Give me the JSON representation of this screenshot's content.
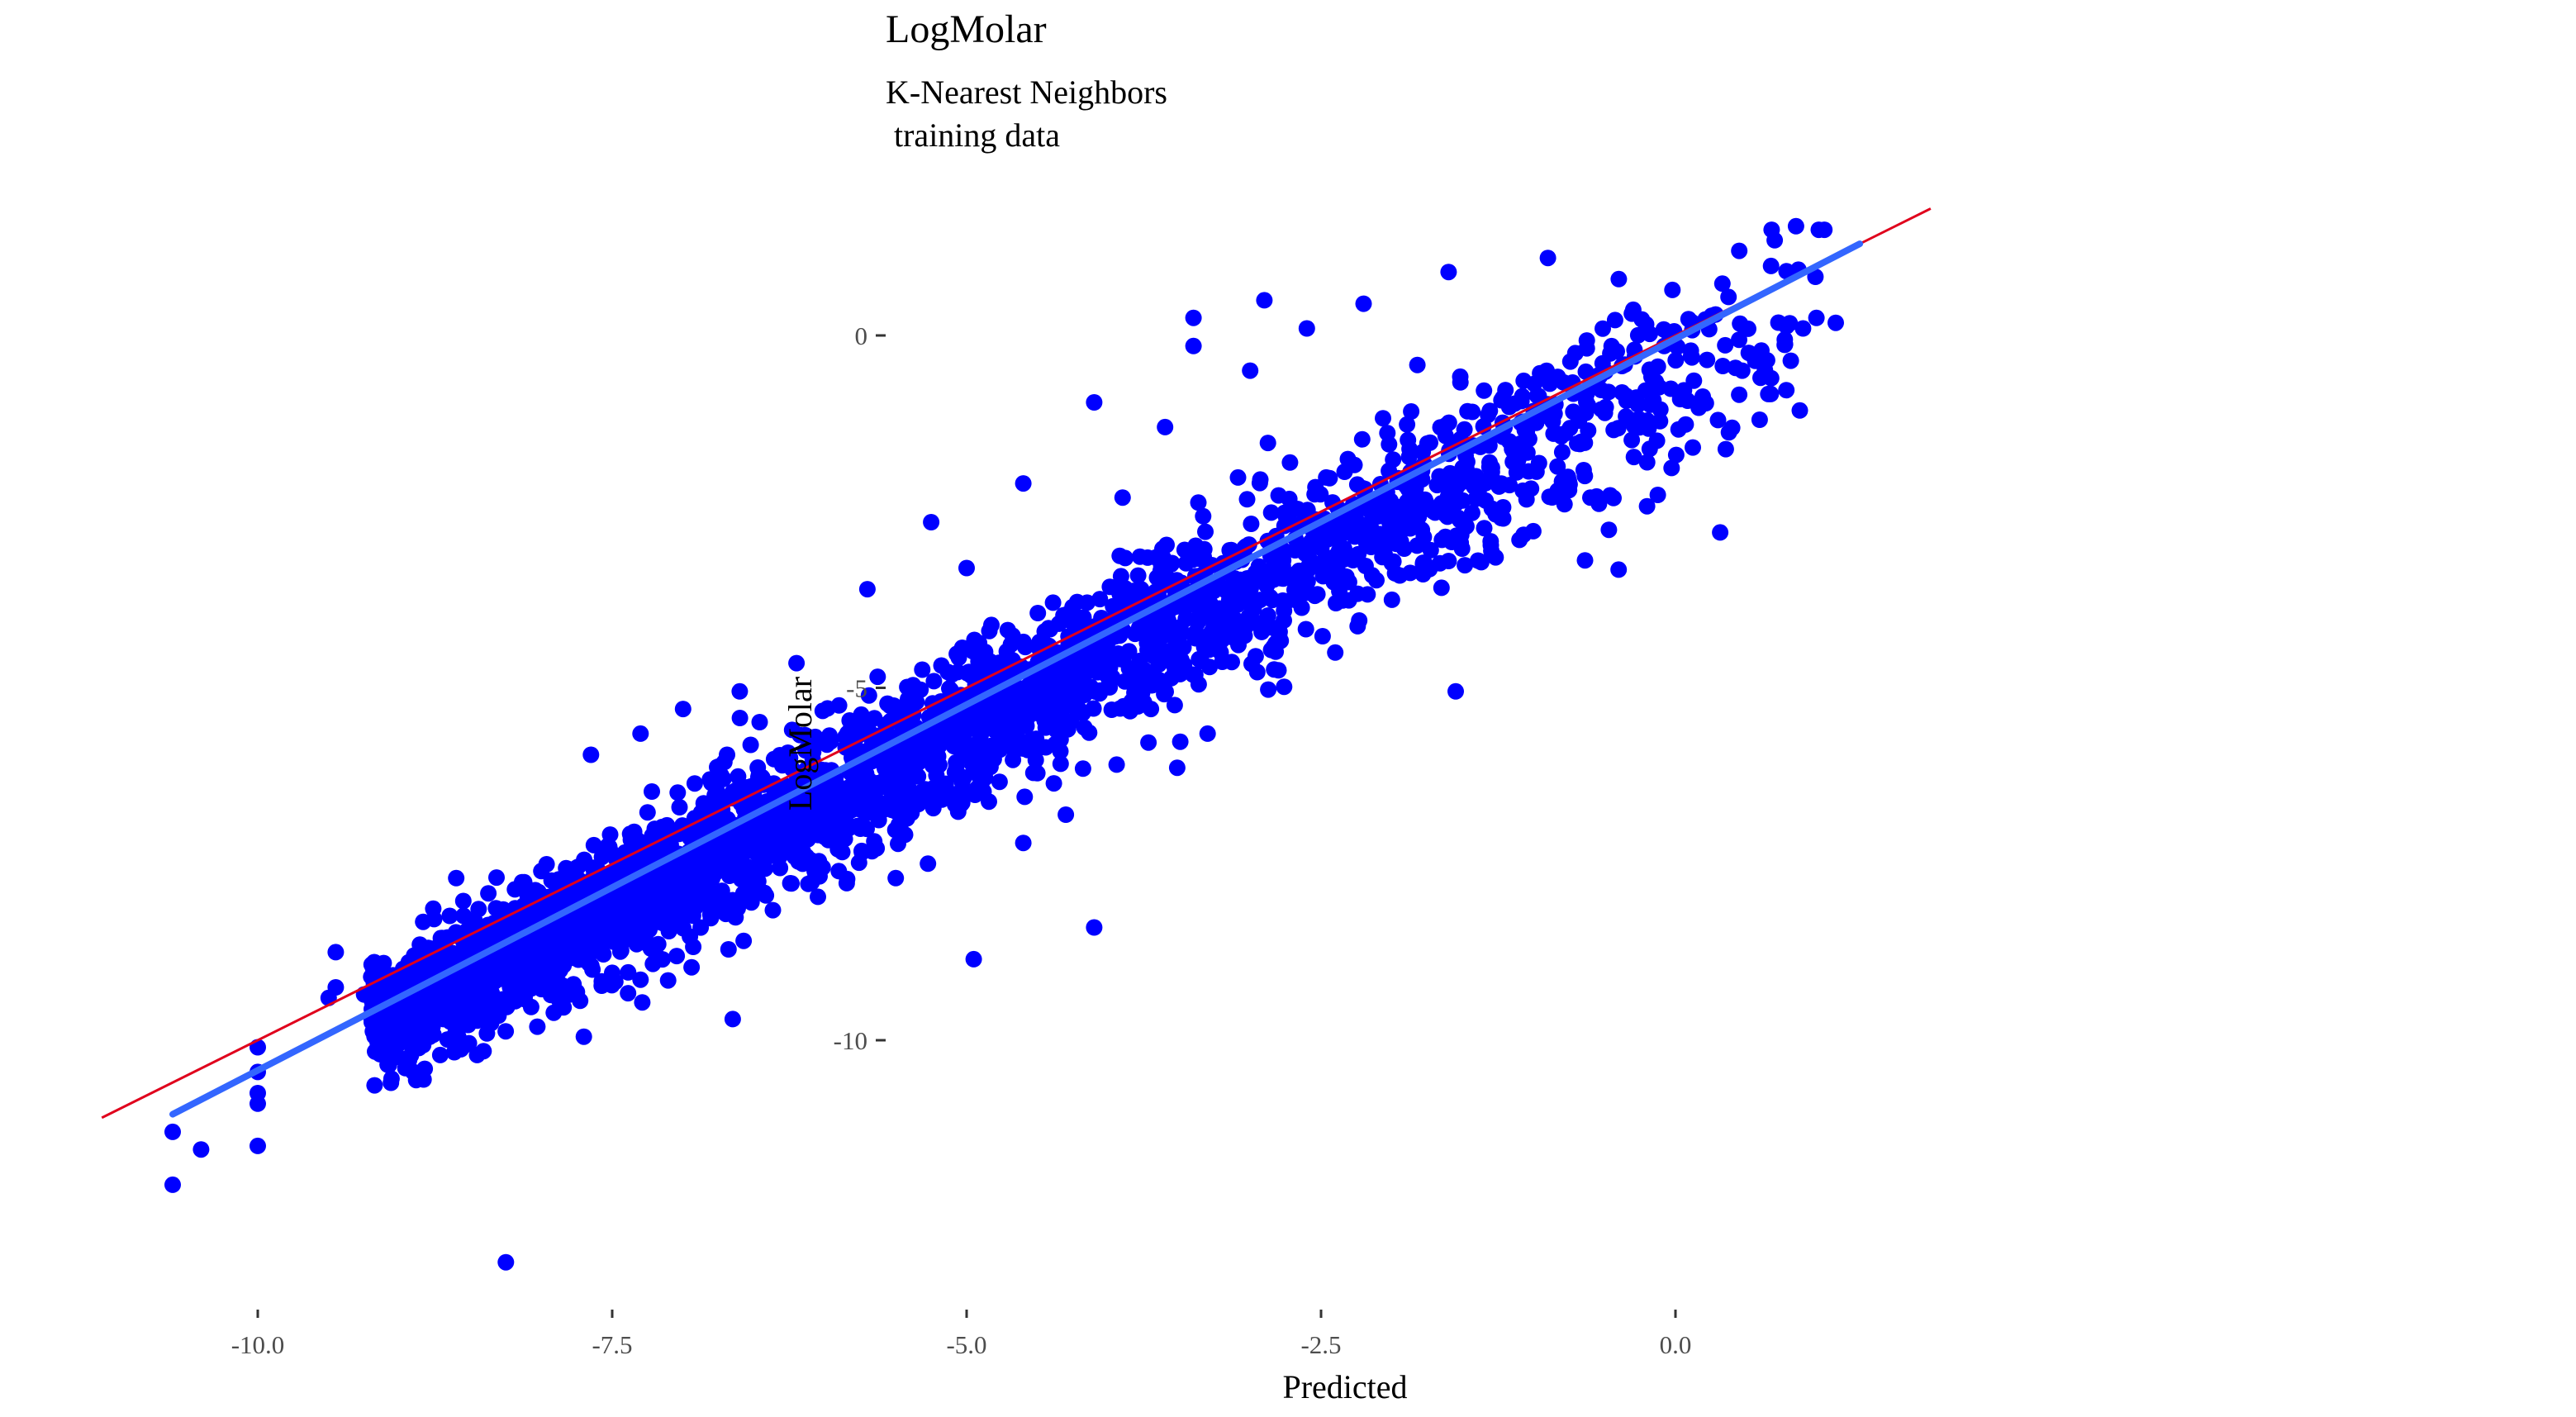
{
  "chart_data": {
    "type": "scatter",
    "title": "LogMolar",
    "subtitle": "K-Nearest Neighbors\n training data",
    "xlabel": "Predicted",
    "ylabel": "LogMolar",
    "xlim": [
      -11.2,
      1.8
    ],
    "ylim": [
      -13.8,
      1.6
    ],
    "x_ticks": [
      -10.0,
      -7.5,
      -5.0,
      -2.5,
      0.0
    ],
    "x_tick_labels": [
      "-10.0",
      "-7.5",
      "-5.0",
      "-2.5",
      "0.0"
    ],
    "y_ticks": [
      0,
      -5,
      -10
    ],
    "y_tick_labels": [
      "0",
      "-5",
      "-10"
    ],
    "grid": false,
    "point_color": "#0000ff",
    "identity_line": {
      "color": "#e0001c",
      "slope": 1,
      "intercept": 0
    },
    "fit_line": {
      "color": "#3366ff",
      "x": [
        -10.6,
        1.3
      ],
      "y": [
        -11.05,
        1.3
      ]
    },
    "points": [
      {
        "x": -10.6,
        "y": -12.05
      },
      {
        "x": -10.6,
        "y": -11.3
      },
      {
        "x": -10.4,
        "y": -11.55
      },
      {
        "x": -10.0,
        "y": -11.5
      },
      {
        "x": -10.0,
        "y": -10.9
      },
      {
        "x": -10.0,
        "y": -10.75
      },
      {
        "x": -10.0,
        "y": -10.45
      },
      {
        "x": -10.0,
        "y": -10.1
      },
      {
        "x": -9.45,
        "y": -9.25
      },
      {
        "x": -9.45,
        "y": -8.75
      },
      {
        "x": -9.25,
        "y": -9.35
      },
      {
        "x": -9.2,
        "y": -9.1
      },
      {
        "x": -8.9,
        "y": -8.85
      },
      {
        "x": -8.7,
        "y": -8.55
      },
      {
        "x": -8.5,
        "y": -9.05
      },
      {
        "x": -8.25,
        "y": -13.15
      },
      {
        "x": -7.8,
        "y": -9.35
      },
      {
        "x": -7.7,
        "y": -9.95
      },
      {
        "x": -7.65,
        "y": -5.95
      },
      {
        "x": -7.3,
        "y": -5.65
      },
      {
        "x": -6.65,
        "y": -9.7
      },
      {
        "x": -5.25,
        "y": -2.65
      },
      {
        "x": -4.95,
        "y": -8.85
      },
      {
        "x": -4.1,
        "y": -8.4
      },
      {
        "x": -4.1,
        "y": -0.95
      },
      {
        "x": -3.4,
        "y": 0.25
      },
      {
        "x": -3.4,
        "y": -0.15
      },
      {
        "x": -2.9,
        "y": 0.5
      },
      {
        "x": -1.55,
        "y": -5.05
      },
      {
        "x": -0.4,
        "y": 0.8
      },
      {
        "x": 0.45,
        "y": 1.2
      },
      {
        "x": 0.7,
        "y": 1.35
      },
      {
        "x": 0.85,
        "y": 1.55
      },
      {
        "x": 1.05,
        "y": 1.5
      },
      {
        "x": -8.0,
        "y": -7.6
      },
      {
        "x": -7.2,
        "y": -7.0
      },
      {
        "x": -6.8,
        "y": -6.35
      },
      {
        "x": -6.3,
        "y": -6.9
      },
      {
        "x": -5.9,
        "y": -7.15
      },
      {
        "x": -5.5,
        "y": -7.7
      },
      {
        "x": -5.2,
        "y": -6.35
      },
      {
        "x": -4.6,
        "y": -7.2
      },
      {
        "x": -4.3,
        "y": -6.8
      },
      {
        "x": -4.55,
        "y": -5.75
      },
      {
        "x": -3.7,
        "y": -5.3
      },
      {
        "x": -3.3,
        "y": -5.65
      },
      {
        "x": -2.8,
        "y": -4.75
      },
      {
        "x": -2.4,
        "y": -4.5
      },
      {
        "x": -2.0,
        "y": -3.75
      },
      {
        "x": -1.6,
        "y": -3.2
      },
      {
        "x": -1.1,
        "y": -2.9
      },
      {
        "x": -0.6,
        "y": -2.3
      },
      {
        "x": -0.2,
        "y": -1.8
      },
      {
        "x": 0.3,
        "y": -1.2
      },
      {
        "x": 0.6,
        "y": -0.6
      },
      {
        "x": 0.9,
        "y": 0.1
      },
      {
        "x": -5.7,
        "y": -3.6
      },
      {
        "x": -5.0,
        "y": -3.3
      },
      {
        "x": -4.6,
        "y": -2.1
      },
      {
        "x": -3.9,
        "y": -2.3
      },
      {
        "x": -3.6,
        "y": -1.3
      },
      {
        "x": -3.0,
        "y": -0.5
      },
      {
        "x": -2.6,
        "y": 0.1
      },
      {
        "x": -2.2,
        "y": 0.45
      },
      {
        "x": -1.6,
        "y": 0.9
      },
      {
        "x": -0.9,
        "y": 1.1
      },
      {
        "x": -6.2,
        "y": -4.65
      },
      {
        "x": -5.9,
        "y": -5.25
      },
      {
        "x": -7.0,
        "y": -5.3
      },
      {
        "x": -6.6,
        "y": -5.05
      },
      {
        "x": -8.6,
        "y": -7.7
      },
      {
        "x": -9.5,
        "y": -9.4
      }
    ],
    "cloud": {
      "n": 3000,
      "x_range": [
        -9.2,
        1.2
      ],
      "slope": 1.0,
      "intercept": -0.6,
      "spread": 0.75
    }
  }
}
